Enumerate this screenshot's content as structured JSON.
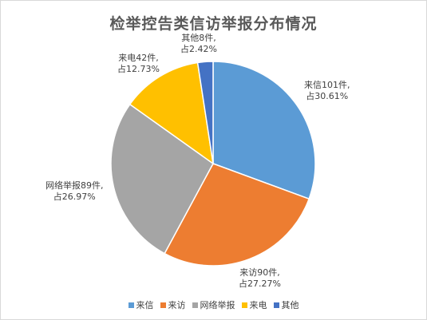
{
  "chart_data": {
    "type": "pie",
    "title": "检举控告类信访举报分布情况",
    "slices": [
      {
        "name": "来信",
        "value": 101,
        "percent": 30.61,
        "color": "#5b9bd5",
        "label_line1": "来信101件,",
        "label_line2": "占30.61%"
      },
      {
        "name": "来访",
        "value": 90,
        "percent": 27.27,
        "color": "#ed7d31",
        "label_line1": "来访90件,",
        "label_line2": "占27.27%"
      },
      {
        "name": "网络举报",
        "value": 89,
        "percent": 26.97,
        "color": "#a5a5a5",
        "label_line1": "网络举报89件,",
        "label_line2": "占26.97%"
      },
      {
        "name": "来电",
        "value": 42,
        "percent": 12.73,
        "color": "#ffc000",
        "label_line1": "来电42件,",
        "label_line2": "占12.73%"
      },
      {
        "name": "其他",
        "value": 8,
        "percent": 2.42,
        "color": "#4472c4",
        "label_line1": "其他8件,",
        "label_line2": "占2.42%"
      }
    ],
    "legend_position": "bottom"
  }
}
